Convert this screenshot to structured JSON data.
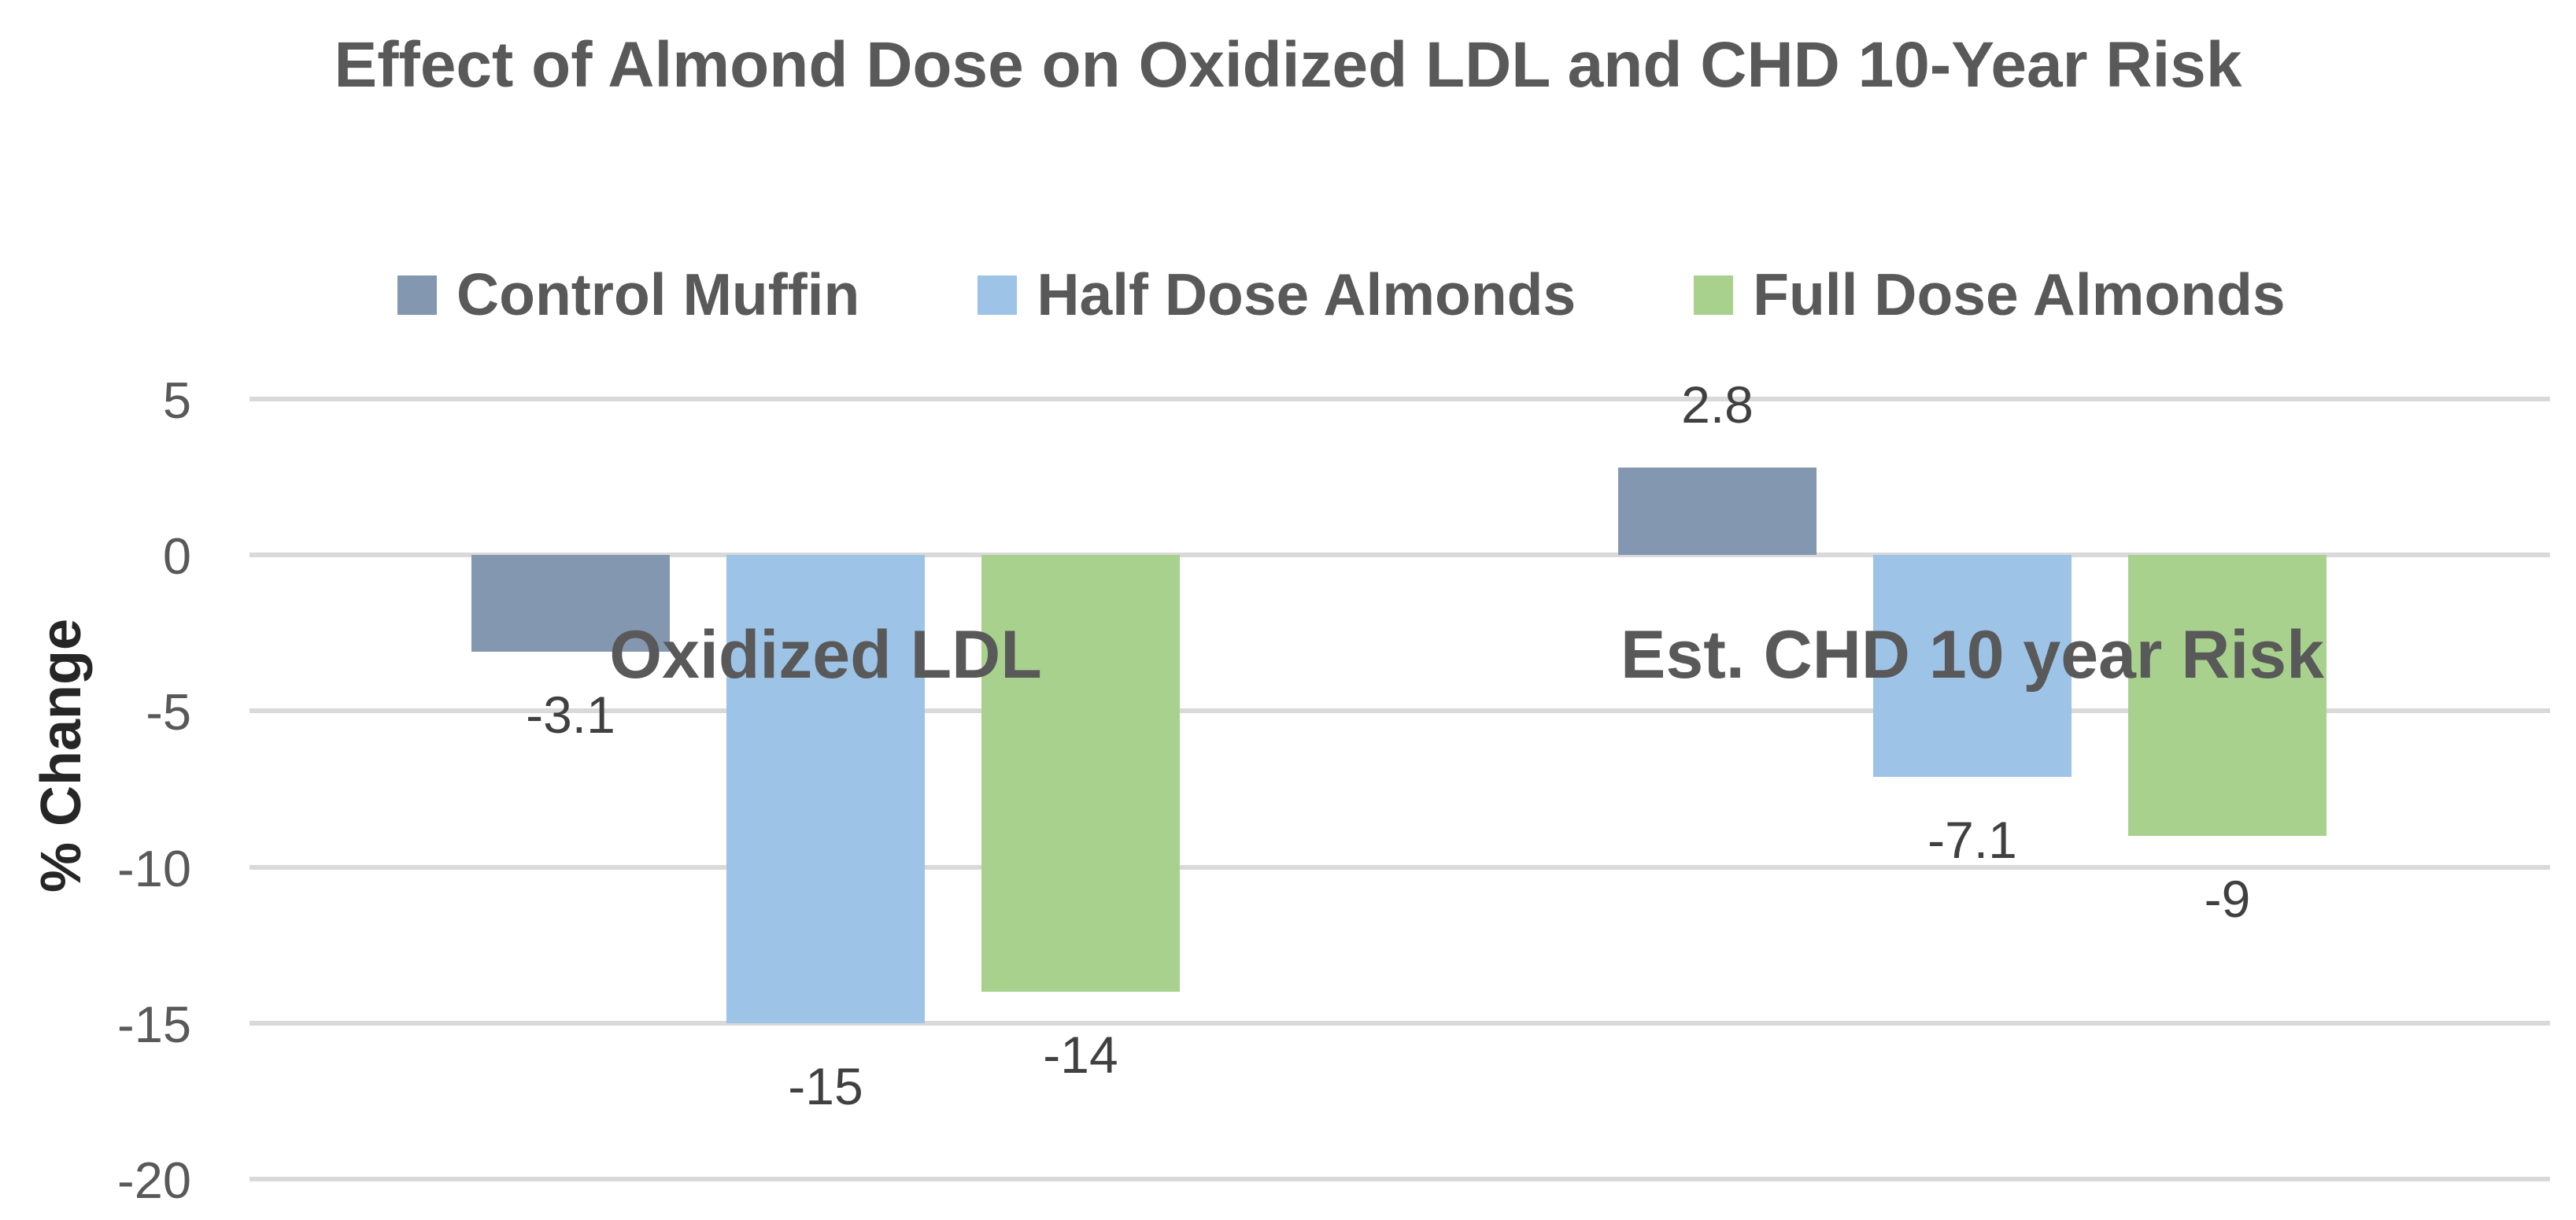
{
  "chart_data": {
    "type": "bar",
    "title": "Effect of Almond Dose on Oxidized LDL and CHD 10-Year Risk",
    "ylabel": "% Change",
    "xlabel": "",
    "categories": [
      "Oxidized LDL",
      "Est. CHD 10 year Risk"
    ],
    "series": [
      {
        "name": "Control Muffin",
        "color": "#8497B0",
        "values": [
          -3.1,
          2.8
        ],
        "data_labels": [
          "-3.1",
          "2.8"
        ]
      },
      {
        "name": "Half Dose Almonds",
        "color": "#9DC3E6",
        "values": [
          -15,
          -7.1
        ],
        "data_labels": [
          "-15",
          "-7.1"
        ]
      },
      {
        "name": "Full Dose Almonds",
        "color": "#A9D18E",
        "values": [
          -14,
          -9
        ],
        "data_labels": [
          "-14",
          "-9"
        ]
      }
    ],
    "ylim": [
      -20,
      5
    ],
    "yticks": [
      5,
      0,
      -5,
      -10,
      -15,
      -20
    ],
    "ytick_labels": [
      "5",
      "0",
      "-5",
      "-10",
      "-15",
      "-20"
    ],
    "grid": true,
    "legend_position": "top",
    "legend_marker": "square",
    "data_label_position": "outside-end"
  },
  "colors": {
    "title_text": "#595959",
    "legend_text": "#595959",
    "category_text": "#595959",
    "tick_text": "#595959",
    "data_label_text": "#404040",
    "y_axis_title_text": "#262626",
    "gridline": "#D9D9D9",
    "background": "#FFFFFF",
    "series_control_muffin": "#8497B0",
    "series_half_dose_almonds": "#9DC3E6",
    "series_full_dose_almonds": "#A9D18E"
  }
}
